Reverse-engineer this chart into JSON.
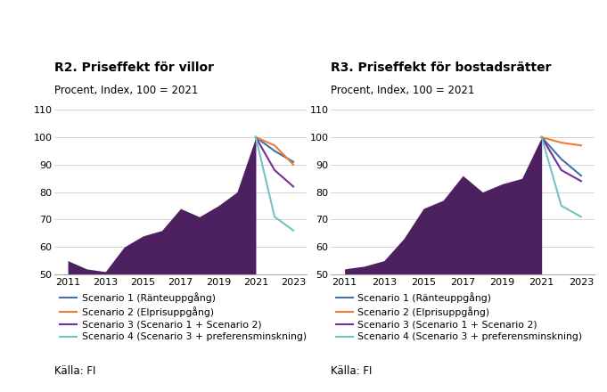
{
  "title_left": "R2. Priseffekt för villor",
  "title_right": "R3. Priseffekt för bostadsrätter",
  "subtitle": "Procent, Index, 100 = 2021",
  "source": "Källa: FI",
  "ylim": [
    50,
    110
  ],
  "yticks": [
    50,
    60,
    70,
    80,
    90,
    100,
    110
  ],
  "xticks": [
    2011,
    2013,
    2015,
    2017,
    2019,
    2021,
    2023
  ],
  "colors": {
    "fill": "#4d2060",
    "s1": "#4472a8",
    "s2": "#ed7d31",
    "s3": "#7030a0",
    "s4": "#70c4c4"
  },
  "villor": {
    "fill_years": [
      2011,
      2012,
      2013,
      2014,
      2015,
      2016,
      2017,
      2018,
      2019,
      2020,
      2021
    ],
    "fill_values": [
      55,
      52,
      51,
      60,
      64,
      66,
      74,
      71,
      75,
      80,
      100
    ],
    "s1_years": [
      2021,
      2022,
      2023
    ],
    "s1_values": [
      100,
      95,
      91
    ],
    "s2_years": [
      2021,
      2022,
      2023
    ],
    "s2_values": [
      100,
      97,
      90
    ],
    "s3_years": [
      2021,
      2022,
      2023
    ],
    "s3_values": [
      100,
      88,
      82
    ],
    "s4_years": [
      2021,
      2022,
      2023
    ],
    "s4_values": [
      100,
      71,
      66
    ]
  },
  "bostadsratter": {
    "fill_years": [
      2011,
      2012,
      2013,
      2014,
      2015,
      2016,
      2017,
      2018,
      2019,
      2020,
      2021
    ],
    "fill_values": [
      52,
      53,
      55,
      63,
      74,
      77,
      86,
      80,
      83,
      85,
      100
    ],
    "s1_years": [
      2021,
      2022,
      2023
    ],
    "s1_values": [
      100,
      92,
      86
    ],
    "s2_years": [
      2021,
      2022,
      2023
    ],
    "s2_values": [
      100,
      98,
      97
    ],
    "s3_years": [
      2021,
      2022,
      2023
    ],
    "s3_values": [
      100,
      88,
      84
    ],
    "s4_years": [
      2021,
      2022,
      2023
    ],
    "s4_values": [
      100,
      75,
      71
    ]
  },
  "legend": [
    "Scenario 1 (Ränteuppgång)",
    "Scenario 2 (Elprisuppgång)",
    "Scenario 3 (Scenario 1 + Scenario 2)",
    "Scenario 4 (Scenario 3 + preferensminskning)"
  ]
}
